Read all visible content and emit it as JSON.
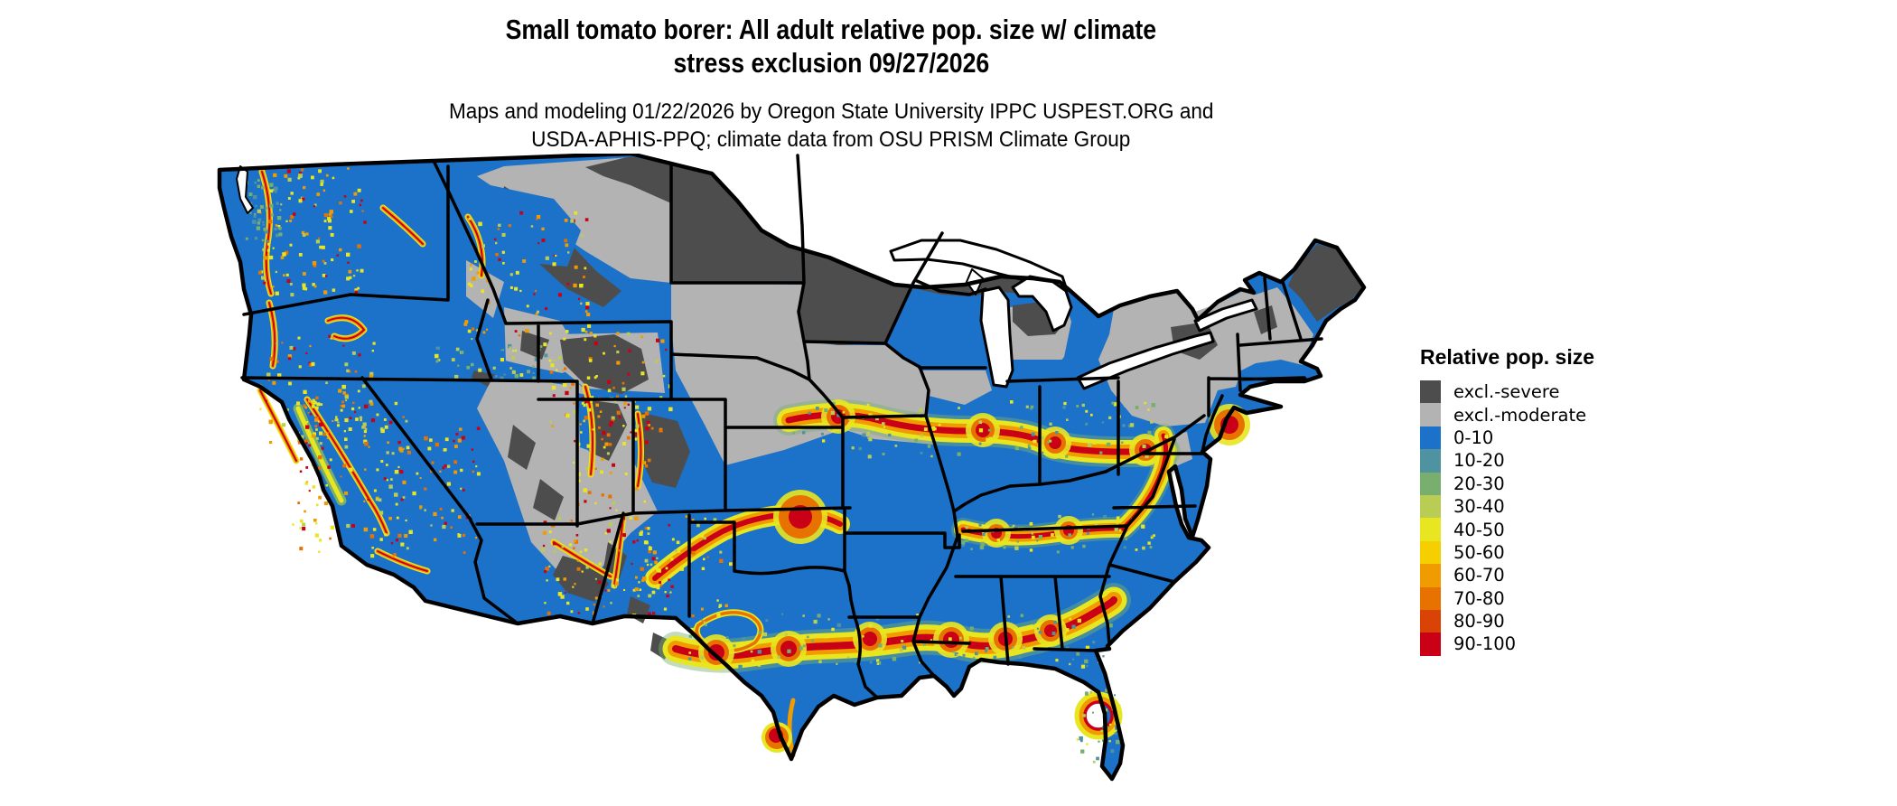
{
  "header": {
    "title_line1": "Small tomato borer: All adult relative pop. size w/ climate",
    "title_line2": "stress exclusion 09/27/2026",
    "subtitle_line1": "Maps and modeling 01/22/2026 by Oregon State University IPPC USPEST.ORG and",
    "subtitle_line2": "USDA-APHIS-PPQ; climate data from OSU PRISM Climate Group"
  },
  "legend": {
    "title": "Relative pop. size",
    "entries": [
      {
        "label": "excl.-severe",
        "color": "#4d4d4d"
      },
      {
        "label": "excl.-moderate",
        "color": "#b3b3b3"
      },
      {
        "label": "0-10",
        "color": "#1b72c8"
      },
      {
        "label": "10-20",
        "color": "#4f93a0"
      },
      {
        "label": "20-30",
        "color": "#79af6e"
      },
      {
        "label": "30-40",
        "color": "#b9cc54"
      },
      {
        "label": "40-50",
        "color": "#e8e621"
      },
      {
        "label": "50-60",
        "color": "#f5cf00"
      },
      {
        "label": "60-70",
        "color": "#f09c00"
      },
      {
        "label": "70-80",
        "color": "#e87200"
      },
      {
        "label": "80-90",
        "color": "#da4306"
      },
      {
        "label": "90-100",
        "color": "#c90016"
      }
    ]
  },
  "map": {
    "region": "Contiguous United States",
    "border_color": "#000000",
    "water_color": "#ffffff"
  }
}
